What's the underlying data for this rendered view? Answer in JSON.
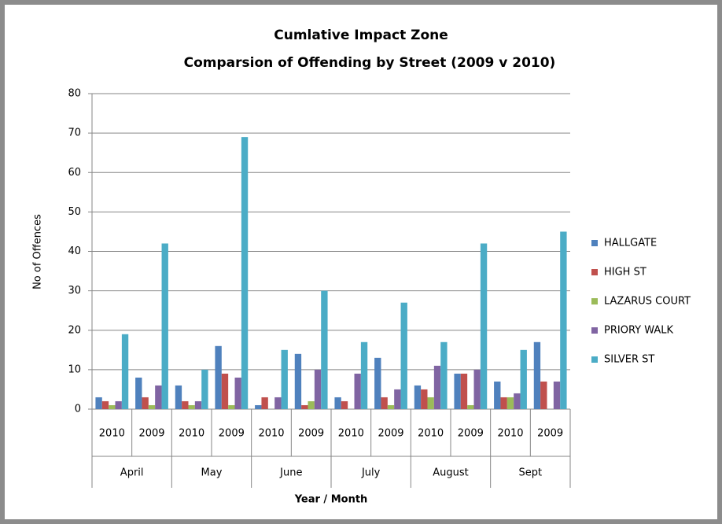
{
  "chart_data": {
    "type": "bar",
    "title": [
      "Cumlative Impact Zone",
      "Comparsion of Offending by Street (2009 v 2010)"
    ],
    "y_label": "No of Offences",
    "x_label": "Year / Month",
    "categories": [
      "2010",
      "2009",
      "2010",
      "2009",
      "2010",
      "2009",
      "2010",
      "2009",
      "2010",
      "2009",
      "2010",
      "2009"
    ],
    "groups": [
      "April",
      "May",
      "June",
      "July",
      "August",
      "Sept"
    ],
    "series": [
      {
        "name": "HALLGATE",
        "color": "#4f81bd",
        "values": [
          3,
          8,
          6,
          16,
          1,
          14,
          3,
          13,
          6,
          9,
          7,
          17
        ]
      },
      {
        "name": "HIGH ST",
        "color": "#c0504d",
        "values": [
          2,
          3,
          2,
          9,
          3,
          1,
          2,
          3,
          5,
          9,
          3,
          7
        ]
      },
      {
        "name": "LAZARUS COURT",
        "color": "#9bbb59",
        "values": [
          1,
          1,
          1,
          1,
          0,
          2,
          0,
          1,
          3,
          1,
          3,
          0
        ]
      },
      {
        "name": "PRIORY WALK",
        "color": "#8064a2",
        "values": [
          2,
          6,
          2,
          8,
          3,
          10,
          9,
          5,
          11,
          10,
          4,
          7
        ]
      },
      {
        "name": "SILVER ST",
        "color": "#4bacc6",
        "values": [
          19,
          42,
          10,
          69,
          15,
          30,
          17,
          27,
          17,
          42,
          15,
          45
        ]
      }
    ],
    "ylim": [
      0,
      80
    ],
    "yticks": [
      0,
      10,
      20,
      30,
      40,
      50,
      60,
      70,
      80
    ],
    "grid": true,
    "legend": "right"
  }
}
